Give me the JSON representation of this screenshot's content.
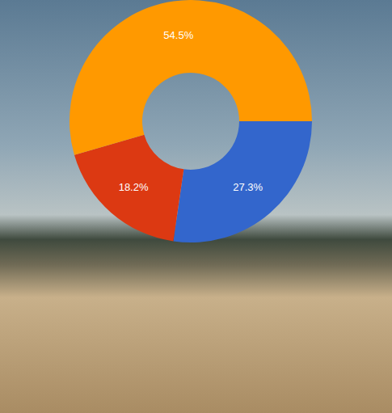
{
  "chart_data": {
    "type": "pie",
    "values": [
      27.3,
      18.2,
      54.5
    ],
    "value_labels": [
      "27.3%",
      "18.2%",
      "54.5%"
    ],
    "colors": [
      "#3366cc",
      "#dc3912",
      "#ff9900"
    ],
    "data_labels": true
  }
}
